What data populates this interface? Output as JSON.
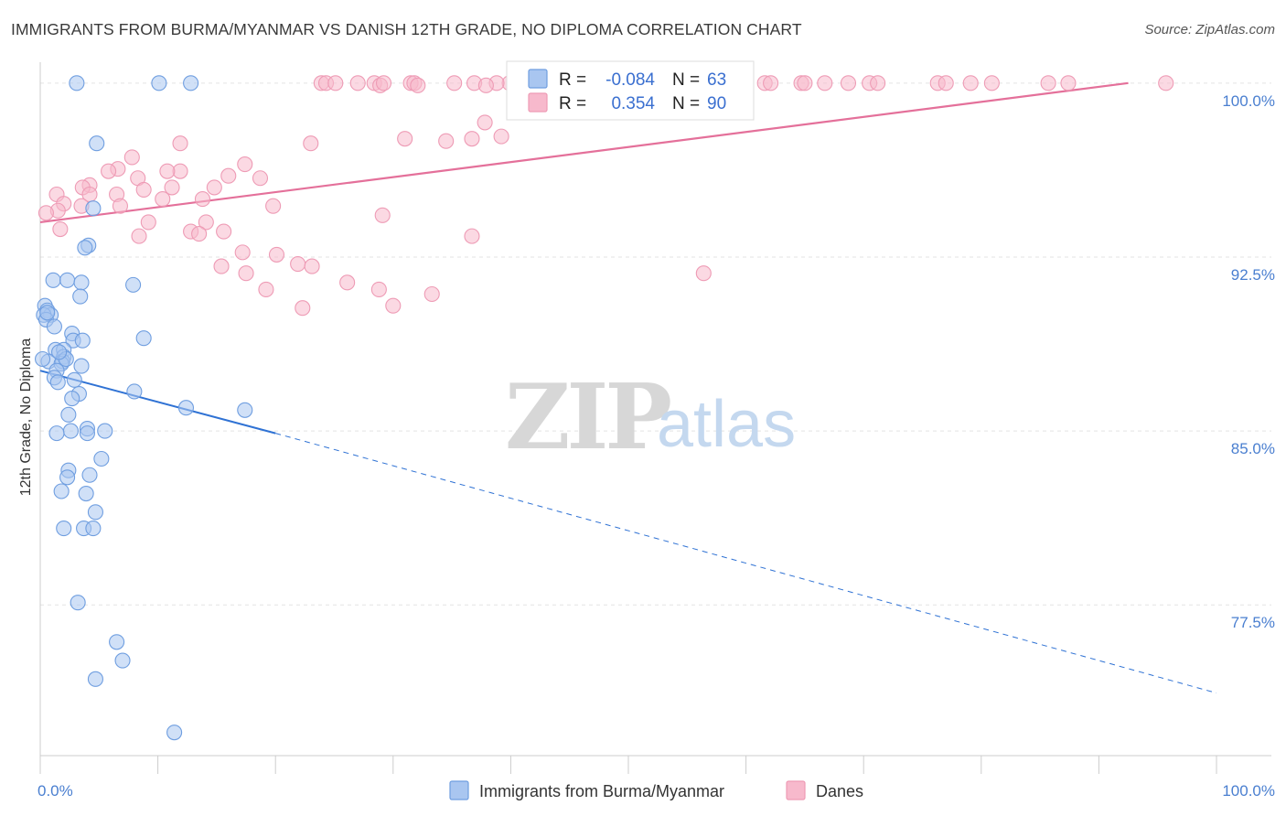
{
  "title": "IMMIGRANTS FROM BURMA/MYANMAR VS DANISH 12TH GRADE, NO DIPLOMA CORRELATION CHART",
  "source": "Source: ZipAtlas.com",
  "watermark": {
    "zip": "ZIP",
    "atlas": "atlas"
  },
  "colors": {
    "blue": "#a9c6f0",
    "blue_stroke": "#6f9ee0",
    "blue_line": "#2f72d4",
    "pink": "#f7b9cc",
    "pink_stroke": "#ee9bb5",
    "pink_line": "#e4709a",
    "tick": "#4a7fd0",
    "grid": "#e3e3e3"
  },
  "legend_box": {
    "rows": [
      {
        "r_label": "R =",
        "r_value": "-0.084",
        "n_label": "N =",
        "n_value": "63",
        "series": "blue"
      },
      {
        "r_label": "R =",
        "r_value": "0.354",
        "n_label": "N =",
        "n_value": "90",
        "series": "pink"
      }
    ]
  },
  "bottom_legend": [
    {
      "label": "Immigrants from Burma/Myanmar",
      "series": "blue"
    },
    {
      "label": "Danes",
      "series": "pink"
    }
  ],
  "chart_data": {
    "type": "scatter",
    "title": "IMMIGRANTS FROM BURMA/MYANMAR VS DANISH 12TH GRADE, NO DIPLOMA CORRELATION CHART",
    "xlabel": "",
    "ylabel": "12th Grade, No Diploma",
    "xlim": [
      0,
      100
    ],
    "ylim": [
      71.0,
      100.9
    ],
    "x_tick_labels": [
      "0.0%",
      "100.0%"
    ],
    "y_ticks": [
      {
        "value": 100.0,
        "label": "100.0%"
      },
      {
        "value": 92.5,
        "label": "92.5%"
      },
      {
        "value": 85.0,
        "label": "85.0%"
      },
      {
        "value": 77.5,
        "label": "77.5%"
      }
    ],
    "grid": true,
    "legend_position": "top-center",
    "series": [
      {
        "name": "Immigrants from Burma/Myanmar",
        "color": "blue",
        "points": [
          [
            3.1,
            100.0
          ],
          [
            10.1,
            100.0
          ],
          [
            12.8,
            100.0
          ],
          [
            4.8,
            97.4
          ],
          [
            4.5,
            94.6
          ],
          [
            4.1,
            93.0
          ],
          [
            3.8,
            92.9
          ],
          [
            1.1,
            91.5
          ],
          [
            2.3,
            91.5
          ],
          [
            3.5,
            91.4
          ],
          [
            7.9,
            91.3
          ],
          [
            3.4,
            90.8
          ],
          [
            0.4,
            90.4
          ],
          [
            0.6,
            90.2
          ],
          [
            0.9,
            90.0
          ],
          [
            0.3,
            90.0
          ],
          [
            0.5,
            89.8
          ],
          [
            1.2,
            89.5
          ],
          [
            2.7,
            89.2
          ],
          [
            8.8,
            89.0
          ],
          [
            2.8,
            88.9
          ],
          [
            1.3,
            88.5
          ],
          [
            2.0,
            88.5
          ],
          [
            2.0,
            88.2
          ],
          [
            0.7,
            88.0
          ],
          [
            1.9,
            88.0
          ],
          [
            1.8,
            87.9
          ],
          [
            3.5,
            87.8
          ],
          [
            1.4,
            87.6
          ],
          [
            1.2,
            87.3
          ],
          [
            1.5,
            87.1
          ],
          [
            8.0,
            86.7
          ],
          [
            3.3,
            86.6
          ],
          [
            2.7,
            86.4
          ],
          [
            12.4,
            86.0
          ],
          [
            17.4,
            85.9
          ],
          [
            2.4,
            85.7
          ],
          [
            4.0,
            85.1
          ],
          [
            5.5,
            85.0
          ],
          [
            2.6,
            85.0
          ],
          [
            1.4,
            84.9
          ],
          [
            4.0,
            84.9
          ],
          [
            5.2,
            83.8
          ],
          [
            2.4,
            83.3
          ],
          [
            4.2,
            83.1
          ],
          [
            2.3,
            83.0
          ],
          [
            1.8,
            82.4
          ],
          [
            3.9,
            82.3
          ],
          [
            4.7,
            81.5
          ],
          [
            2.0,
            80.8
          ],
          [
            3.7,
            80.8
          ],
          [
            4.5,
            80.8
          ],
          [
            3.2,
            77.6
          ],
          [
            6.5,
            75.9
          ],
          [
            7.0,
            75.1
          ],
          [
            4.7,
            74.3
          ],
          [
            11.4,
            72.0
          ],
          [
            0.2,
            88.1
          ],
          [
            2.2,
            88.1
          ],
          [
            0.6,
            90.1
          ],
          [
            3.6,
            88.9
          ],
          [
            1.6,
            88.4
          ],
          [
            2.9,
            87.2
          ]
        ],
        "trend": {
          "x": [
            0,
            20
          ],
          "y": [
            87.6,
            84.9
          ],
          "dashed_to": [
            100,
            73.7
          ]
        }
      },
      {
        "name": "Danes",
        "color": "pink",
        "points": [
          [
            23.9,
            100.0
          ],
          [
            24.3,
            100.0
          ],
          [
            25.1,
            100.0
          ],
          [
            27.0,
            100.0
          ],
          [
            28.4,
            100.0
          ],
          [
            28.9,
            99.9
          ],
          [
            29.2,
            100.0
          ],
          [
            31.5,
            100.0
          ],
          [
            31.8,
            100.0
          ],
          [
            35.2,
            100.0
          ],
          [
            36.9,
            100.0
          ],
          [
            39.9,
            100.0
          ],
          [
            42.0,
            100.0
          ],
          [
            38.8,
            100.0
          ],
          [
            48.3,
            100.0
          ],
          [
            57.6,
            100.0
          ],
          [
            61.6,
            100.0
          ],
          [
            62.1,
            100.0
          ],
          [
            64.7,
            100.0
          ],
          [
            65.0,
            100.0
          ],
          [
            66.7,
            100.0
          ],
          [
            68.7,
            100.0
          ],
          [
            70.5,
            100.0
          ],
          [
            71.2,
            100.0
          ],
          [
            76.3,
            100.0
          ],
          [
            77.0,
            100.0
          ],
          [
            79.1,
            100.0
          ],
          [
            80.9,
            100.0
          ],
          [
            85.7,
            100.0
          ],
          [
            87.4,
            100.0
          ],
          [
            95.7,
            100.0
          ],
          [
            32.1,
            99.9
          ],
          [
            37.9,
            99.9
          ],
          [
            51.7,
            99.4
          ],
          [
            45.6,
            99.4
          ],
          [
            46.2,
            99.0
          ],
          [
            37.8,
            98.3
          ],
          [
            39.2,
            97.7
          ],
          [
            31.0,
            97.6
          ],
          [
            36.7,
            97.6
          ],
          [
            23.0,
            97.4
          ],
          [
            34.5,
            97.5
          ],
          [
            11.9,
            97.4
          ],
          [
            7.8,
            96.8
          ],
          [
            17.4,
            96.5
          ],
          [
            6.6,
            96.3
          ],
          [
            5.8,
            96.2
          ],
          [
            11.9,
            96.2
          ],
          [
            4.2,
            95.6
          ],
          [
            10.8,
            96.2
          ],
          [
            8.3,
            95.9
          ],
          [
            16.0,
            96.0
          ],
          [
            18.7,
            95.9
          ],
          [
            11.2,
            95.5
          ],
          [
            3.6,
            95.5
          ],
          [
            14.8,
            95.5
          ],
          [
            1.4,
            95.2
          ],
          [
            4.2,
            95.2
          ],
          [
            6.5,
            95.2
          ],
          [
            8.8,
            95.4
          ],
          [
            10.4,
            95.0
          ],
          [
            13.8,
            95.0
          ],
          [
            2.0,
            94.8
          ],
          [
            6.8,
            94.7
          ],
          [
            1.5,
            94.5
          ],
          [
            0.5,
            94.4
          ],
          [
            3.5,
            94.7
          ],
          [
            19.8,
            94.7
          ],
          [
            9.2,
            94.0
          ],
          [
            14.1,
            94.0
          ],
          [
            29.1,
            94.3
          ],
          [
            1.7,
            93.7
          ],
          [
            12.8,
            93.6
          ],
          [
            15.6,
            93.6
          ],
          [
            8.4,
            93.4
          ],
          [
            13.5,
            93.5
          ],
          [
            36.7,
            93.4
          ],
          [
            17.2,
            92.7
          ],
          [
            20.1,
            92.6
          ],
          [
            15.4,
            92.1
          ],
          [
            21.9,
            92.2
          ],
          [
            23.1,
            92.1
          ],
          [
            17.5,
            91.8
          ],
          [
            26.1,
            91.4
          ],
          [
            19.2,
            91.1
          ],
          [
            28.8,
            91.1
          ],
          [
            33.3,
            90.9
          ],
          [
            56.4,
            91.8
          ],
          [
            22.3,
            90.3
          ],
          [
            30.0,
            90.4
          ]
        ],
        "trend": {
          "x": [
            0,
            92.5
          ],
          "y": [
            94.0,
            100.0
          ]
        }
      }
    ]
  }
}
